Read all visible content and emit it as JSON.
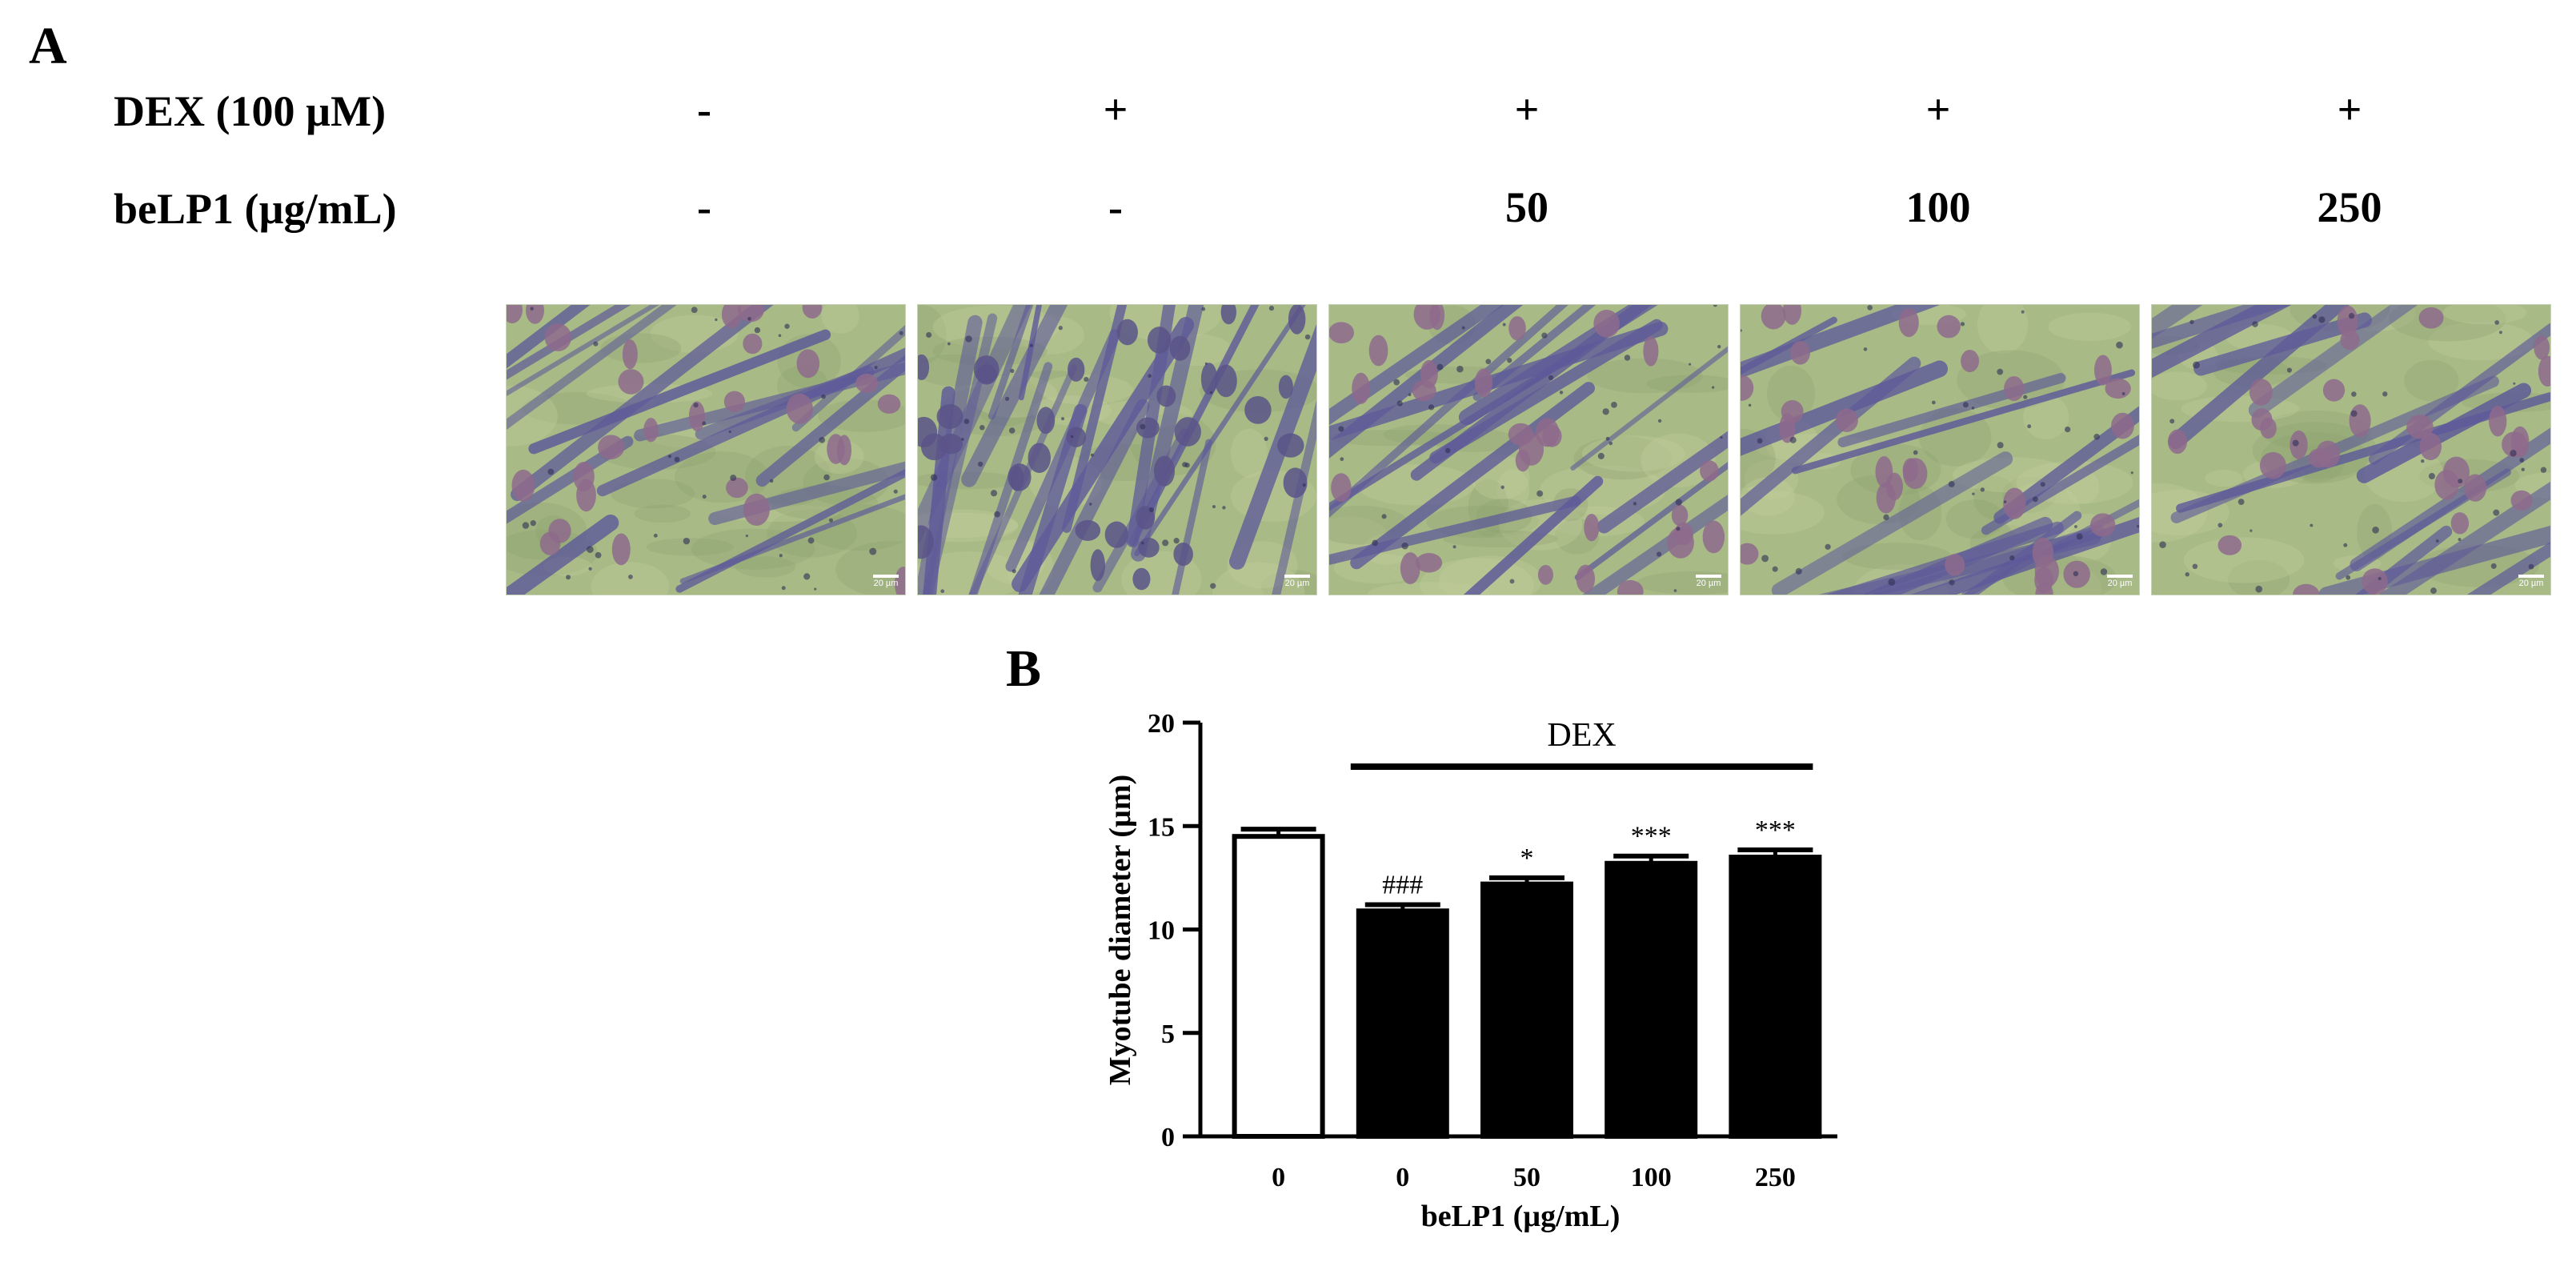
{
  "panel_a": {
    "letter": "A",
    "rows": [
      {
        "label": "DEX (100 µM)",
        "values": [
          "-",
          "+",
          "+",
          "+",
          "+"
        ]
      },
      {
        "label": "beLP1 (µg/mL)",
        "values": [
          "-",
          "-",
          "50",
          "100",
          "250"
        ]
      }
    ],
    "images": [
      {
        "scale_label": "20 µm"
      },
      {
        "scale_label": "20 µm"
      },
      {
        "scale_label": "20 µm"
      },
      {
        "scale_label": "20 µm"
      },
      {
        "scale_label": "20 µm"
      }
    ]
  },
  "panel_b": {
    "letter": "B"
  },
  "colors": {
    "micro_bg": "#a8ba86",
    "cell": "#5e5a9a",
    "nucleus": "#8e6a8c",
    "bar_fill": "#000000",
    "control_fill": "#ffffff"
  },
  "chart_data": {
    "type": "bar",
    "categories": [
      "0",
      "0",
      "50",
      "100",
      "250"
    ],
    "values": [
      14.5,
      10.9,
      12.2,
      13.2,
      13.5
    ],
    "errors": [
      0.35,
      0.3,
      0.3,
      0.35,
      0.35
    ],
    "bar_styles": [
      "open",
      "filled",
      "filled",
      "filled",
      "filled"
    ],
    "annotations": [
      "",
      "###",
      "*",
      "***",
      "***"
    ],
    "group_label": "DEX",
    "group_span": [
      1,
      4
    ],
    "xlabel": "beLP1 (µg/mL)",
    "ylabel": "Myotube diameter (µm)",
    "ylim": [
      0,
      20
    ],
    "yticks": [
      0,
      5,
      10,
      15,
      20
    ]
  }
}
